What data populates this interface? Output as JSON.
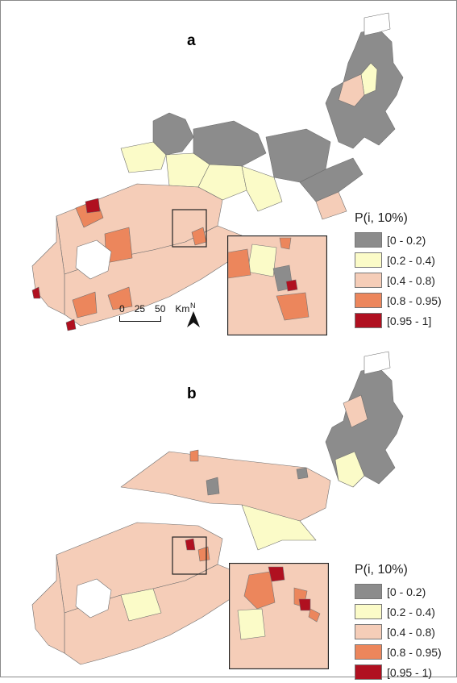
{
  "panels": [
    {
      "label": "a",
      "legend_title": "P(i, 10%)",
      "legend": [
        {
          "label": "[0 - 0.2)",
          "color": "#8c8c8c"
        },
        {
          "label": "[0.2 - 0.4)",
          "color": "#fbfbc8"
        },
        {
          "label": "[0.4 - 0.8)",
          "color": "#f5cdb8"
        },
        {
          "label": "[0.8 - 0.95)",
          "color": "#ec865c"
        },
        {
          "label": "[0.95 - 1]",
          "color": "#b01020"
        }
      ]
    },
    {
      "label": "b",
      "legend_title": "P(i, 10%)",
      "legend": [
        {
          "label": "[0 - 0.2)",
          "color": "#8c8c8c"
        },
        {
          "label": "[0.2 - 0.4)",
          "color": "#fbfbc8"
        },
        {
          "label": "[0.4 - 0.8)",
          "color": "#f5cdb8"
        },
        {
          "label": "[0.8 - 0.95)",
          "color": "#ec865c"
        },
        {
          "label": "[0.95 - 1)",
          "color": "#b01020"
        }
      ]
    }
  ],
  "scalebar": {
    "ticks": [
      "0",
      "25",
      "50"
    ],
    "unit": "Km"
  },
  "north_label": "N"
}
